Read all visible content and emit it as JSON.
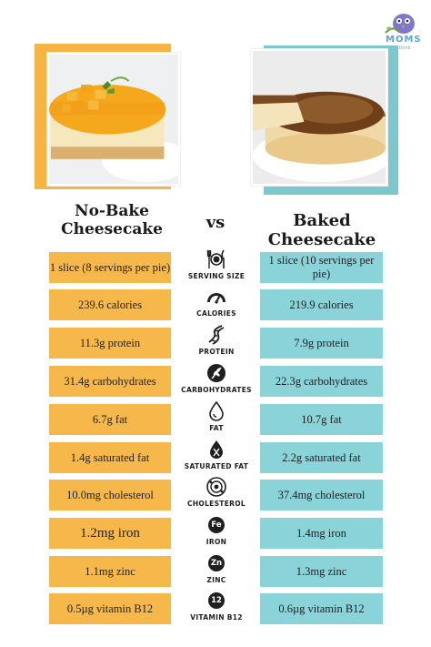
{
  "logo": {
    "word": "MOMS",
    "tagline": "who think"
  },
  "titles": {
    "left": "No-Bake Cheesecake",
    "vs": "vs",
    "right": "Baked Cheesecake"
  },
  "rows": [
    {
      "left": "1 slice (8 servings per pie)",
      "label": "SERVING SIZE",
      "right": "1 slice (10 servings per pie)",
      "icon": "fork-plate-knife-icon"
    },
    {
      "left": "239.6 calories",
      "label": "CALORIES",
      "right": "219.9 calories",
      "icon": "gauge-icon"
    },
    {
      "left": "11.3g protein",
      "label": "PROTEIN",
      "right": "7.9g protein",
      "icon": "dna-icon"
    },
    {
      "left": "31.4g carbohydrates",
      "label": "CARBOHYDRATES",
      "right": "22.3g carbohydrates",
      "icon": "wheat-icon"
    },
    {
      "left": "6.7g fat",
      "label": "FAT",
      "right": "10.7g fat",
      "icon": "drop-icon"
    },
    {
      "left": "1.4g saturated fat",
      "label": "SATURATED FAT",
      "right": "2.2g saturated fat",
      "icon": "fat-drop-icon"
    },
    {
      "left": "10.0mg cholesterol",
      "label": "CHOLESTEROL",
      "right": "37.4mg cholesterol",
      "icon": "cholesterol-icon"
    },
    {
      "left": "1.2mg iron",
      "label": "IRON",
      "right": "1.4mg iron",
      "icon": "fe-badge-icon",
      "badge": "Fe"
    },
    {
      "left": "1.1mg zinc",
      "label": "ZINC",
      "right": "1.3mg zinc",
      "icon": "zn-badge-icon",
      "badge": "Zn"
    },
    {
      "left": "0.5µg vitamin B12",
      "label": "VITAMIN B12",
      "right": "0.6µg vitamin B12",
      "icon": "b12-badge-icon",
      "badge": "12"
    }
  ],
  "colors": {
    "left_accent": "#f7b84b",
    "right_accent": "#8ad3d9",
    "frame_left": "#f6b445",
    "frame_right": "#7dc8cf"
  }
}
